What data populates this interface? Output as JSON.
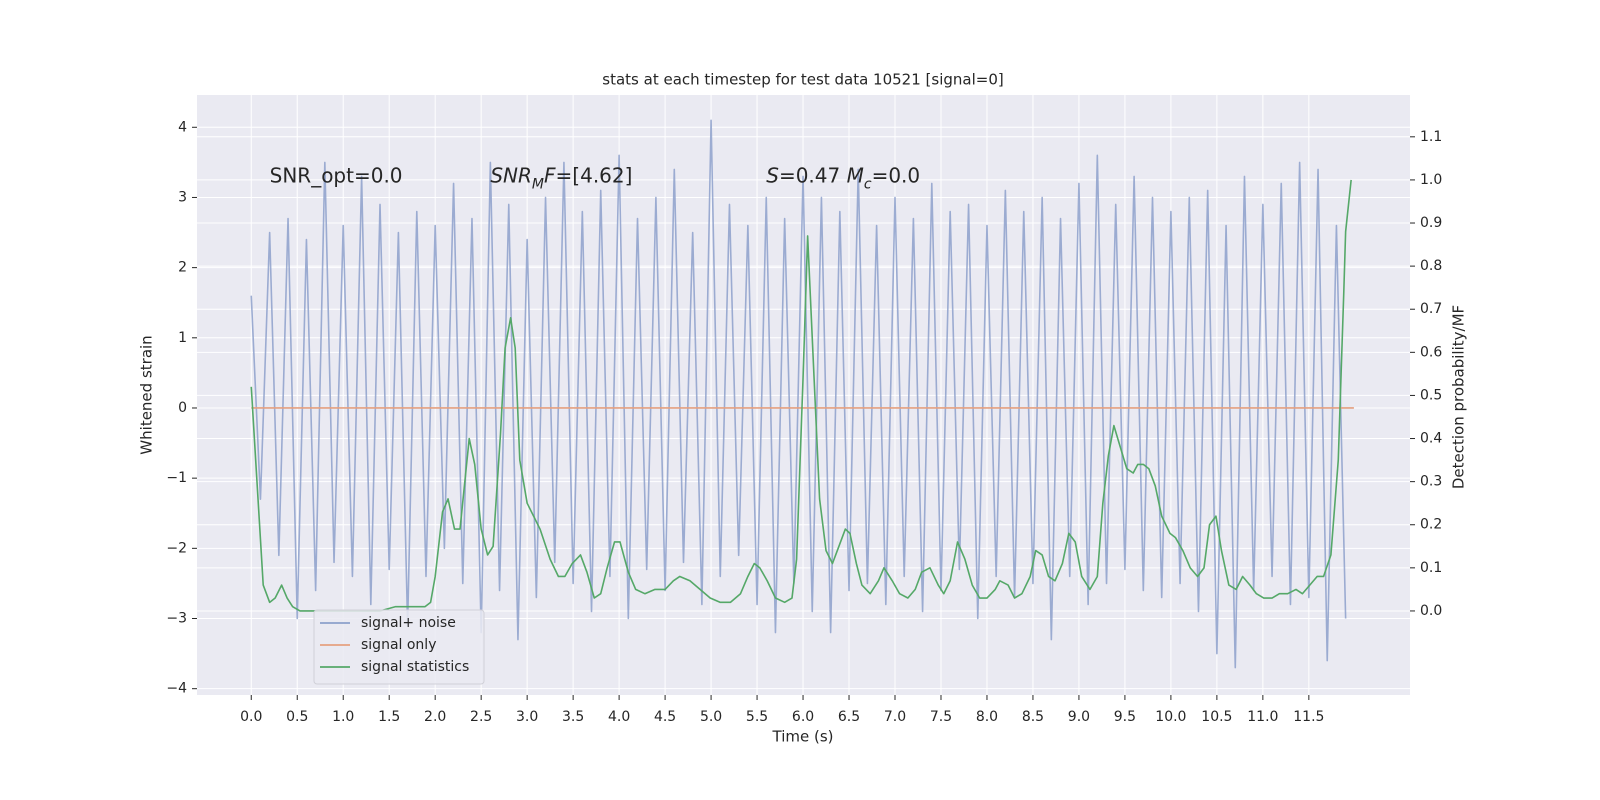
{
  "chart_data": {
    "type": "line",
    "title": "stats at each timestep for test data 10521 [signal=0]",
    "xlabel": "Time (s)",
    "ylabel": "Whitened strain",
    "y2label": "Detection probability/MF",
    "annotations": [
      {
        "x": 0.2,
        "y": 3.3,
        "parts": [
          {
            "text": "SNR_opt=0.0"
          }
        ]
      },
      {
        "x": 2.6,
        "y": 3.3,
        "parts": [
          {
            "text": "SNR",
            "italic": true
          },
          {
            "text": "M",
            "italic": true,
            "sub": true
          },
          {
            "text": "F",
            "italic": true
          },
          {
            "text": "=[4.62]"
          }
        ]
      },
      {
        "x": 5.6,
        "y": 3.3,
        "parts": [
          {
            "text": "S",
            "italic": true
          },
          {
            "text": "=0.47   "
          },
          {
            "text": "M",
            "italic": true
          },
          {
            "text": "c",
            "italic": true,
            "sub": true
          },
          {
            "text": "=0.0"
          }
        ]
      }
    ],
    "xlim": [
      -0.59,
      12.6
    ],
    "ylim": [
      -4.09,
      4.46
    ],
    "y2lim": [
      -0.195,
      1.197
    ],
    "xticks": [
      {
        "value": 0,
        "label": "0.0"
      },
      0.5,
      {
        "value": 1,
        "label": "1.0"
      },
      1.5,
      {
        "value": 2,
        "label": "2.0"
      },
      2.5,
      {
        "value": 3,
        "label": "3.0"
      },
      3.5,
      {
        "value": 4,
        "label": "4.0"
      },
      4.5,
      {
        "value": 5,
        "label": "5.0"
      },
      5.5,
      {
        "value": 6,
        "label": "6.0"
      },
      6.5,
      {
        "value": 7,
        "label": "7.0"
      },
      7.5,
      {
        "value": 8,
        "label": "8.0"
      },
      8.5,
      {
        "value": 9,
        "label": "9.0"
      },
      9.5,
      {
        "value": 10,
        "label": "10.0"
      },
      10.5,
      {
        "value": 11,
        "label": "11.0"
      },
      11.5
    ],
    "yticks": [
      {
        "value": -4,
        "label": "−4"
      },
      {
        "value": -3,
        "label": "−3"
      },
      {
        "value": -2,
        "label": "−2"
      },
      {
        "value": -1,
        "label": "−1"
      },
      0,
      1,
      2,
      3,
      4
    ],
    "y2ticks": [
      {
        "value": 0,
        "label": "0.0"
      },
      0.1,
      0.2,
      0.3,
      0.4,
      0.5,
      0.6,
      0.7,
      0.8,
      0.9,
      {
        "value": 1,
        "label": "1.0"
      },
      1.1
    ],
    "grid": true,
    "legend": "lower left",
    "series": [
      {
        "name": "signal+ noise",
        "color": "#8da0cb",
        "opacity": 0.85,
        "x": [
          0,
          0.1,
          0.2,
          0.3,
          0.4,
          0.5,
          0.6,
          0.7,
          0.8,
          0.9,
          1,
          1.1,
          1.2,
          1.3,
          1.4,
          1.5,
          1.6,
          1.7,
          1.8,
          1.9,
          2,
          2.1,
          2.2,
          2.3,
          2.4,
          2.5,
          2.6,
          2.7,
          2.8,
          2.9,
          3,
          3.1,
          3.2,
          3.3,
          3.4,
          3.5,
          3.6,
          3.7,
          3.8,
          3.9,
          4,
          4.1,
          4.2,
          4.3,
          4.4,
          4.5,
          4.6,
          4.7,
          4.8,
          4.9,
          5,
          5.1,
          5.2,
          5.3,
          5.4,
          5.5,
          5.6,
          5.7,
          5.8,
          5.9,
          6,
          6.1,
          6.2,
          6.3,
          6.4,
          6.5,
          6.6,
          6.7,
          6.8,
          6.9,
          7,
          7.1,
          7.2,
          7.3,
          7.4,
          7.5,
          7.6,
          7.7,
          7.8,
          7.9,
          8,
          8.1,
          8.2,
          8.3,
          8.4,
          8.5,
          8.6,
          8.7,
          8.8,
          8.9,
          9,
          9.1,
          9.2,
          9.3,
          9.4,
          9.5,
          9.6,
          9.7,
          9.8,
          9.9,
          10,
          10.1,
          10.2,
          10.3,
          10.4,
          10.5,
          10.6,
          10.7,
          10.8,
          10.9,
          11,
          11.1,
          11.2,
          11.3,
          11.4,
          11.5,
          11.6,
          11.7,
          11.8,
          11.9
        ],
        "values": [
          1.6,
          -1.3,
          2.5,
          -2.1,
          2.7,
          -3.0,
          2.4,
          -2.6,
          3.5,
          -2.2,
          2.6,
          -2.4,
          3.3,
          -2.8,
          2.9,
          -2.3,
          2.5,
          -3.1,
          2.8,
          -2.4,
          2.6,
          -2.0,
          3.2,
          -2.5,
          2.7,
          -3.2,
          3.5,
          -2.6,
          2.9,
          -3.3,
          2.4,
          -2.7,
          3.0,
          -2.2,
          3.5,
          -2.5,
          2.8,
          -2.9,
          3.1,
          -2.4,
          3.6,
          -3.0,
          2.7,
          -2.3,
          3.0,
          -2.6,
          3.4,
          -2.2,
          2.5,
          -2.8,
          4.1,
          -2.4,
          2.9,
          -2.1,
          2.6,
          -2.8,
          3.0,
          -3.2,
          2.7,
          -2.5,
          3.3,
          -2.9,
          3.0,
          -3.2,
          2.8,
          -2.6,
          3.4,
          -2.5,
          2.6,
          -2.8,
          3.0,
          -2.4,
          2.7,
          -2.9,
          3.2,
          -2.6,
          2.8,
          -2.3,
          2.9,
          -3.0,
          2.6,
          -2.4,
          3.1,
          -2.7,
          2.8,
          -2.5,
          3.0,
          -3.3,
          2.7,
          -2.4,
          3.2,
          -2.8,
          3.6,
          -2.5,
          2.9,
          -2.3,
          3.3,
          -2.6,
          3.0,
          -2.7,
          2.8,
          -2.5,
          3.0,
          -2.9,
          3.1,
          -3.5,
          2.6,
          -3.7,
          3.3,
          -2.6,
          2.9,
          -2.4,
          3.2,
          -2.8,
          3.5,
          -2.7,
          3.4,
          -3.6,
          2.6,
          -3.0
        ]
      },
      {
        "name": "signal only",
        "color": "#e5a07f",
        "x": [
          0,
          11.99
        ],
        "values": [
          0,
          0
        ]
      },
      {
        "name": "signal statistics",
        "color": "#55a868",
        "axis": "y2",
        "x": [
          0,
          0.13,
          0.2,
          0.26,
          0.33,
          0.39,
          0.45,
          0.53,
          0.64,
          0.8,
          0.97,
          1.18,
          1.4,
          1.57,
          1.73,
          1.89,
          1.95,
          2.0,
          2.08,
          2.14,
          2.21,
          2.27,
          2.37,
          2.43,
          2.5,
          2.57,
          2.63,
          2.71,
          2.76,
          2.82,
          2.87,
          2.92,
          3.0,
          3.14,
          3.25,
          3.34,
          3.41,
          3.49,
          3.58,
          3.65,
          3.73,
          3.8,
          3.87,
          3.95,
          4.01,
          4.1,
          4.18,
          4.28,
          4.39,
          4.5,
          4.59,
          4.66,
          4.77,
          4.88,
          4.99,
          5.1,
          5.21,
          5.32,
          5.4,
          5.47,
          5.53,
          5.61,
          5.7,
          5.8,
          5.88,
          5.93,
          6.0,
          6.05,
          6.12,
          6.18,
          6.25,
          6.32,
          6.39,
          6.46,
          6.51,
          6.58,
          6.64,
          6.73,
          6.82,
          6.88,
          6.97,
          7.05,
          7.14,
          7.22,
          7.29,
          7.38,
          7.47,
          7.53,
          7.6,
          7.68,
          7.76,
          7.84,
          7.92,
          8.0,
          8.09,
          8.14,
          8.23,
          8.3,
          8.38,
          8.47,
          8.53,
          8.6,
          8.67,
          8.74,
          8.82,
          8.89,
          8.96,
          9.03,
          9.12,
          9.2,
          9.26,
          9.32,
          9.38,
          9.45,
          9.52,
          9.59,
          9.64,
          9.7,
          9.76,
          9.83,
          9.9,
          9.99,
          10.05,
          10.13,
          10.21,
          10.29,
          10.36,
          10.42,
          10.49,
          10.55,
          10.63,
          10.71,
          10.78,
          10.86,
          10.93,
          11.01,
          11.1,
          11.18,
          11.27,
          11.36,
          11.43,
          11.51,
          11.59,
          11.66,
          11.74,
          11.82,
          11.88,
          11.9,
          11.96
        ],
        "values": [
          0.52,
          0.06,
          0.02,
          0.03,
          0.06,
          0.03,
          0.01,
          0,
          0,
          0,
          0,
          0,
          0,
          0.01,
          0.01,
          0.01,
          0.02,
          0.08,
          0.23,
          0.26,
          0.19,
          0.19,
          0.4,
          0.34,
          0.19,
          0.13,
          0.15,
          0.41,
          0.61,
          0.68,
          0.61,
          0.35,
          0.25,
          0.19,
          0.12,
          0.08,
          0.08,
          0.11,
          0.13,
          0.09,
          0.03,
          0.04,
          0.1,
          0.16,
          0.16,
          0.09,
          0.05,
          0.04,
          0.05,
          0.05,
          0.07,
          0.08,
          0.07,
          0.05,
          0.03,
          0.02,
          0.02,
          0.04,
          0.08,
          0.11,
          0.1,
          0.07,
          0.03,
          0.02,
          0.03,
          0.12,
          0.54,
          0.87,
          0.54,
          0.26,
          0.14,
          0.11,
          0.15,
          0.19,
          0.18,
          0.11,
          0.06,
          0.04,
          0.07,
          0.1,
          0.07,
          0.04,
          0.03,
          0.05,
          0.09,
          0.1,
          0.06,
          0.04,
          0.07,
          0.16,
          0.12,
          0.06,
          0.03,
          0.03,
          0.05,
          0.07,
          0.06,
          0.03,
          0.04,
          0.08,
          0.14,
          0.13,
          0.08,
          0.07,
          0.11,
          0.18,
          0.16,
          0.08,
          0.05,
          0.08,
          0.25,
          0.36,
          0.43,
          0.38,
          0.33,
          0.32,
          0.34,
          0.34,
          0.33,
          0.29,
          0.22,
          0.18,
          0.17,
          0.14,
          0.1,
          0.08,
          0.1,
          0.2,
          0.22,
          0.14,
          0.06,
          0.05,
          0.08,
          0.06,
          0.04,
          0.03,
          0.03,
          0.04,
          0.04,
          0.05,
          0.04,
          0.06,
          0.08,
          0.08,
          0.13,
          0.35,
          0.74,
          0.88,
          1.0
        ]
      }
    ]
  }
}
